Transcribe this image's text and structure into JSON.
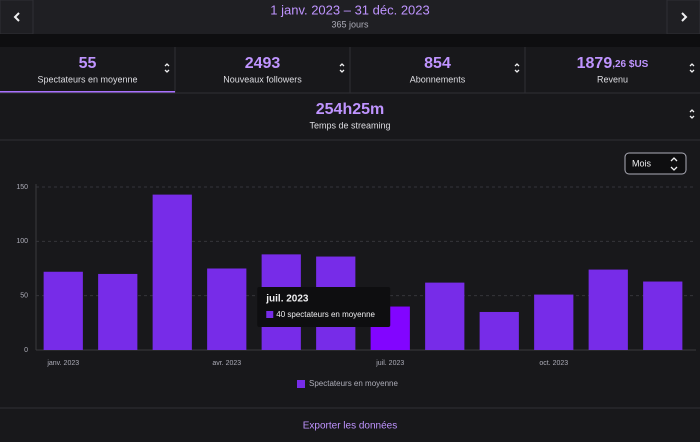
{
  "header": {
    "range": "1 janv. 2023 – 31 déc. 2023",
    "days": "365 jours"
  },
  "stats": [
    {
      "value": "55",
      "label": "Spectateurs en moyenne"
    },
    {
      "value": "2493",
      "label": "Nouveaux followers"
    },
    {
      "value": "854",
      "label": "Abonnements"
    },
    {
      "value": "1879",
      "suffix": ",26 $US",
      "label": "Revenu"
    },
    {
      "value": "254h25m",
      "label": "Temps de streaming"
    }
  ],
  "period_select": "Mois",
  "chart_data": {
    "type": "bar",
    "categories": [
      "janv. 2023",
      null,
      null,
      "avr. 2023",
      null,
      null,
      "juil. 2023",
      null,
      null,
      "oct. 2023",
      null,
      null
    ],
    "series": [
      {
        "name": "Spectateurs en moyenne",
        "color": "#772ce8",
        "highlight_color": "#8205ff",
        "values": [
          72,
          70,
          143,
          75,
          88,
          86,
          40,
          62,
          35,
          51,
          74,
          63
        ]
      }
    ],
    "ylim": [
      0,
      150
    ],
    "yticks": [
      0,
      50,
      100,
      150
    ],
    "grid": true,
    "tooltip": {
      "title": "juil. 2023",
      "text": "40 spectateurs en moyenne",
      "index": 6
    }
  },
  "footer": {
    "export": "Exporter les données"
  }
}
